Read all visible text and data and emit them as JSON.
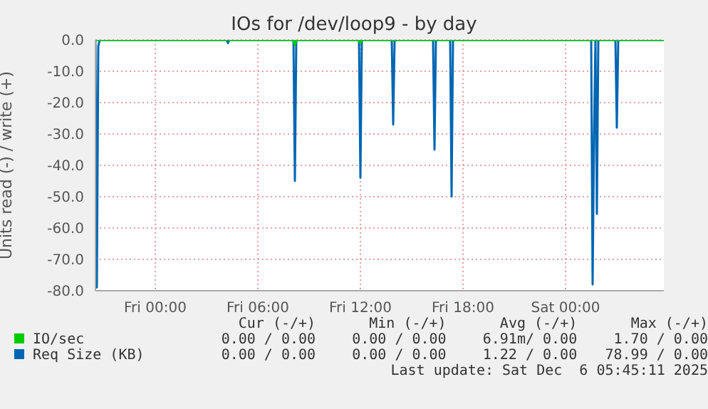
{
  "chart_data": {
    "type": "line",
    "title": "IOs for /dev/loop9 - by day",
    "ylabel": "Units read (-) / write (+)",
    "xlim": [
      "2025-12-04T20:30",
      "2025-12-06T05:45"
    ],
    "xticks": [
      {
        "value": "2025-12-05T00:00",
        "label": "Fri 00:00"
      },
      {
        "value": "2025-12-05T06:00",
        "label": "Fri 06:00"
      },
      {
        "value": "2025-12-05T12:00",
        "label": "Fri 12:00"
      },
      {
        "value": "2025-12-05T18:00",
        "label": "Fri 18:00"
      },
      {
        "value": "2025-12-06T00:00",
        "label": "Sat 00:00"
      }
    ],
    "ylim": [
      -80,
      0
    ],
    "yticks": [
      {
        "value": -80,
        "label": "-80.0"
      },
      {
        "value": -70,
        "label": "-70.0"
      },
      {
        "value": -60,
        "label": "-60.0"
      },
      {
        "value": -50,
        "label": "-50.0"
      },
      {
        "value": -40,
        "label": "-40.0"
      },
      {
        "value": -30,
        "label": "-30.0"
      },
      {
        "value": -20,
        "label": "-20.0"
      },
      {
        "value": -10,
        "label": "-10.0"
      },
      {
        "value": 0,
        "label": "0.0"
      }
    ],
    "grid": true,
    "legend": "bottom left",
    "marker": "none",
    "line_style": "solid",
    "series": [
      {
        "name": "IO/sec",
        "color": "#00cc00",
        "x": [
          "2025-12-04T20:30",
          "2025-12-05T08:05",
          "2025-12-05T08:10",
          "2025-12-05T08:15",
          "2025-12-05T11:55",
          "2025-12-05T12:00",
          "2025-12-05T12:05",
          "2025-12-06T05:45"
        ],
        "values": [
          0,
          0,
          -1.7,
          0,
          0,
          -1,
          0,
          0
        ]
      },
      {
        "name": "Req Size (KB)",
        "color": "#0066b3",
        "x": [
          "2025-12-04T20:30",
          "2025-12-04T20:35",
          "2025-12-04T20:40",
          "2025-12-04T20:45",
          "2025-12-05T04:10",
          "2025-12-05T04:15",
          "2025-12-05T04:20",
          "2025-12-05T08:05",
          "2025-12-05T08:10",
          "2025-12-05T08:15",
          "2025-12-05T11:55",
          "2025-12-05T12:00",
          "2025-12-05T12:05",
          "2025-12-05T13:50",
          "2025-12-05T13:55",
          "2025-12-05T14:00",
          "2025-12-05T16:15",
          "2025-12-05T16:20",
          "2025-12-05T16:25",
          "2025-12-05T17:15",
          "2025-12-05T17:20",
          "2025-12-05T17:25",
          "2025-12-06T01:30",
          "2025-12-06T01:35",
          "2025-12-06T01:40",
          "2025-12-06T01:45",
          "2025-12-06T01:50",
          "2025-12-06T01:55",
          "2025-12-06T02:55",
          "2025-12-06T03:00",
          "2025-12-06T03:05",
          "2025-12-06T05:45"
        ],
        "values": [
          0,
          -79,
          -2,
          0,
          0,
          -1,
          0,
          0,
          -45,
          0,
          0,
          -44,
          0,
          0,
          -27,
          0,
          0,
          -35,
          0,
          0,
          -50,
          0,
          0,
          -78,
          -30,
          0,
          -55.5,
          0,
          0,
          -28,
          0,
          0
        ]
      }
    ],
    "annotations": [
      "Cur (-/+)",
      "Min (-/+)",
      "Avg (-/+)",
      "Max (-/+)",
      "0.00 / 0.00",
      "0.00 / 0.00",
      "6.91m/ 0.00",
      "1.70 / 0.00",
      "0.00 / 0.00",
      "0.00 / 0.00",
      "1.22 / 0.00",
      "78.99 / 0.00",
      "Last update: Sat Dec  6 05:45:11 2025"
    ]
  }
}
